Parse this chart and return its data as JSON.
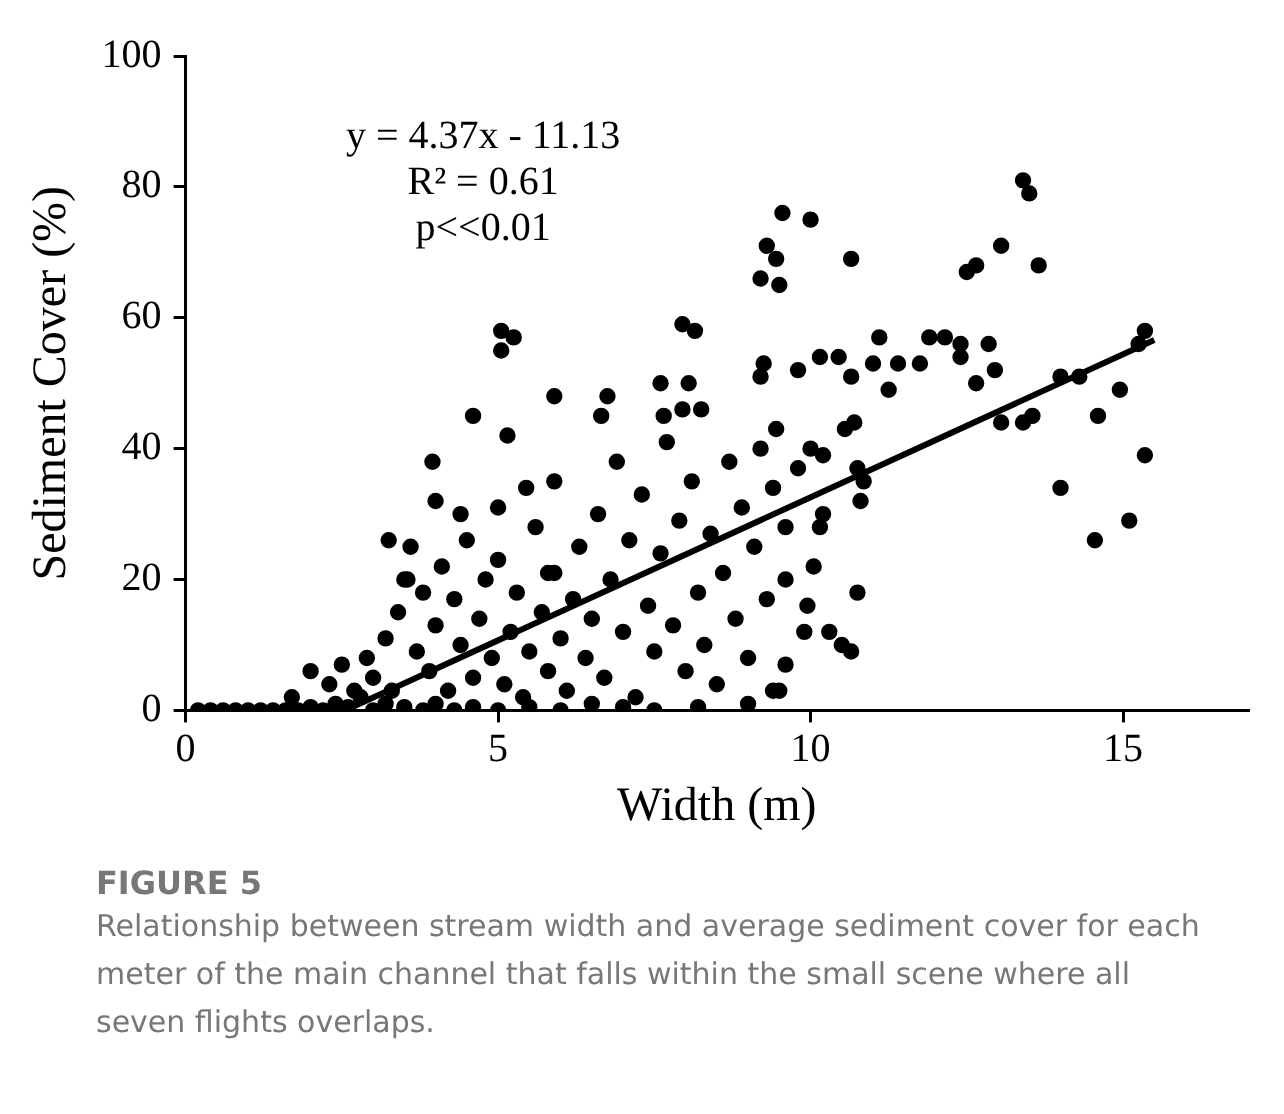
{
  "chart_data": {
    "type": "scatter",
    "title": "FIGURE 5",
    "subtitle": "Relationship between stream width and average sediment cover for each meter of the main channel that falls within the small scene where all seven flights overlaps.",
    "xlabel": "Width (m)",
    "ylabel": "Sediment Cover (%)",
    "annotations": [
      "y = 4.37x - 11.13",
      "R² = 0.61",
      "p<<0.01"
    ],
    "xlim": [
      0,
      17
    ],
    "xticks": [
      0,
      5,
      10,
      15
    ],
    "ylim": [
      0,
      100
    ],
    "yticks": [
      0,
      20,
      40,
      60,
      80,
      100
    ],
    "grid": false,
    "legend": false,
    "marker": "circle",
    "series": [
      {
        "color": "#000000",
        "x": [
          0.2,
          0.4,
          0.6,
          0.8,
          1.0,
          1.2,
          1.4,
          1.6,
          1.8,
          2.0,
          2.2,
          2.4,
          2.6,
          2.8,
          3.0,
          3.2,
          3.5,
          3.8,
          4.0,
          4.3,
          4.6,
          5.0,
          5.5,
          6.0,
          6.5,
          7.0,
          7.5,
          8.2,
          9.0,
          1.7,
          2.0,
          2.3,
          2.5,
          2.7,
          2.9,
          3.0,
          3.2,
          3.3,
          3.4,
          3.5,
          3.6,
          3.7,
          3.8,
          3.9,
          4.0,
          4.1,
          4.2,
          4.3,
          4.4,
          4.5,
          4.6,
          4.7,
          4.8,
          4.9,
          5.0,
          5.1,
          5.2,
          5.3,
          5.4,
          5.5,
          5.6,
          5.7,
          5.8,
          5.9,
          6.0,
          6.1,
          6.2,
          6.3,
          6.4,
          6.5,
          6.6,
          6.7,
          6.8,
          6.9,
          7.0,
          7.1,
          7.2,
          7.3,
          7.4,
          7.5,
          7.6,
          7.7,
          7.8,
          7.9,
          8.0,
          8.1,
          8.2,
          8.3,
          8.4,
          8.5,
          8.6,
          8.7,
          8.8,
          8.9,
          9.0,
          9.1,
          9.2,
          9.3,
          9.4,
          9.5,
          9.6,
          9.8,
          10.2,
          13.4,
          13.5,
          9.55,
          10.0,
          9.3,
          9.45,
          9.2,
          9.5,
          10.65,
          12.5,
          12.65,
          13.05,
          13.65,
          15.35,
          15.25,
          14.0,
          14.3,
          14.95,
          14.6,
          15.35,
          14.0,
          14.55,
          15.1,
          13.05,
          13.4,
          13.55,
          11.1,
          11.9,
          12.15,
          12.4,
          12.85,
          10.15,
          10.45,
          10.65,
          11.0,
          11.4,
          11.75,
          11.25,
          12.4,
          12.65,
          12.95,
          9.8,
          9.2,
          9.25,
          10.55,
          10.7,
          10.75,
          10.85,
          10.8,
          10.0,
          10.2,
          10.15,
          10.05,
          10.75,
          9.95,
          9.9,
          10.3,
          10.5,
          10.65,
          9.6,
          9.4,
          9.6,
          9.45,
          5.05,
          5.25,
          5.05,
          7.95,
          8.15,
          4.6,
          5.15,
          5.9,
          3.95,
          7.6,
          8.05,
          8.25,
          6.75,
          6.65,
          7.65,
          7.95,
          4.0,
          4.4,
          5.0,
          5.45,
          5.9,
          3.25,
          3.55,
          5.8
        ],
        "values": [
          0,
          0,
          0,
          0,
          0,
          0,
          0,
          0,
          0,
          0.5,
          0,
          1,
          0.5,
          2,
          0,
          1,
          0.5,
          0,
          1,
          0,
          0.5,
          0,
          0.5,
          0,
          1,
          0.5,
          0,
          0.5,
          1,
          2,
          6,
          4,
          7,
          3,
          8,
          5,
          11,
          3,
          15,
          20,
          25,
          9,
          18,
          6,
          13,
          22,
          3,
          17,
          10,
          26,
          5,
          14,
          20,
          8,
          23,
          4,
          12,
          18,
          2,
          9,
          28,
          15,
          6,
          21,
          11,
          3,
          17,
          25,
          8,
          14,
          30,
          5,
          20,
          38,
          12,
          26,
          2,
          33,
          16,
          9,
          24,
          41,
          13,
          29,
          6,
          35,
          18,
          10,
          27,
          4,
          21,
          38,
          14,
          31,
          8,
          25,
          40,
          17,
          34,
          3,
          28,
          37,
          30,
          81,
          79,
          76,
          75,
          71,
          69,
          66,
          65,
          69,
          67,
          68,
          71,
          68,
          58,
          56,
          51,
          51,
          49,
          45,
          39,
          34,
          26,
          29,
          44,
          44,
          45,
          57,
          57,
          57,
          56,
          56,
          54,
          54,
          51,
          53,
          53,
          53,
          49,
          54,
          50,
          52,
          52,
          51,
          53,
          43,
          44,
          37,
          35,
          32,
          40,
          39,
          28,
          22,
          18,
          16,
          12,
          12,
          10,
          9,
          20,
          3,
          7,
          43,
          58,
          57,
          55,
          59,
          58,
          45,
          42,
          48,
          38,
          50,
          50,
          46,
          48,
          45,
          45,
          46,
          32,
          30,
          31,
          34,
          35,
          26,
          20,
          21
        ]
      },
      {
        "type": "line",
        "color": "#000000",
        "marker": "none",
        "line_style": "solid",
        "x": [
          2.55,
          15.5
        ],
        "values": [
          0,
          56.6
        ]
      }
    ]
  }
}
